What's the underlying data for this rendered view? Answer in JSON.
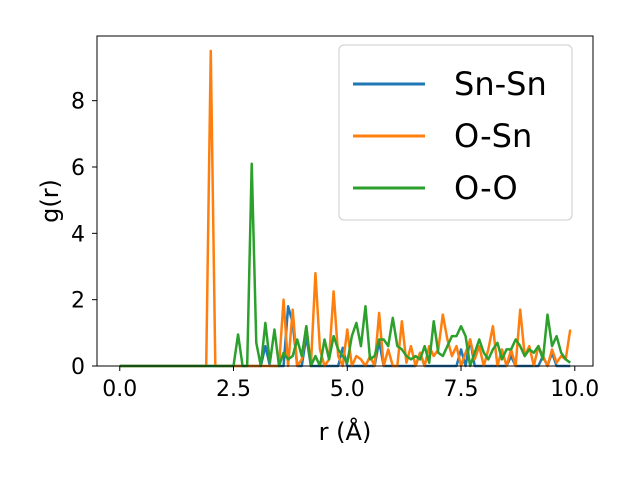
{
  "chart_data": {
    "type": "line",
    "title": "",
    "xlabel": "r (Å)",
    "ylabel": "g(r)",
    "xlim": [
      -0.5,
      10.4
    ],
    "ylim": [
      0,
      9.95
    ],
    "xticks": [
      0.0,
      2.5,
      5.0,
      7.5,
      10.0
    ],
    "xtick_labels": [
      "0.0",
      "2.5",
      "5.0",
      "7.5",
      "10.0"
    ],
    "yticks": [
      0,
      2,
      4,
      6,
      8
    ],
    "ytick_labels": [
      "0",
      "2",
      "4",
      "6",
      "8"
    ],
    "grid": false,
    "legend_position": "top-right",
    "series": [
      {
        "name": "Sn-Sn",
        "color": "#1f77b4",
        "points": [
          [
            0.0,
            0
          ],
          [
            2.9,
            0
          ],
          [
            3.0,
            0
          ],
          [
            3.1,
            0
          ],
          [
            3.2,
            0.6
          ],
          [
            3.3,
            0
          ],
          [
            3.5,
            0
          ],
          [
            3.6,
            0
          ],
          [
            3.7,
            1.8
          ],
          [
            3.8,
            1.3
          ],
          [
            3.9,
            0
          ],
          [
            4.0,
            0
          ],
          [
            4.1,
            0.9
          ],
          [
            4.2,
            0
          ],
          [
            4.5,
            0
          ],
          [
            4.8,
            0
          ],
          [
            4.9,
            0.55
          ],
          [
            5.0,
            0
          ],
          [
            5.6,
            0
          ],
          [
            5.7,
            0.75
          ],
          [
            5.8,
            0
          ],
          [
            6.5,
            0
          ],
          [
            6.6,
            0.4
          ],
          [
            6.7,
            0
          ],
          [
            7.4,
            0
          ],
          [
            7.5,
            0.5
          ],
          [
            7.6,
            0
          ],
          [
            7.7,
            0.8
          ],
          [
            7.8,
            0
          ],
          [
            8.5,
            0
          ],
          [
            8.6,
            0.3
          ],
          [
            8.7,
            0
          ],
          [
            9.2,
            0
          ],
          [
            9.3,
            0.3
          ],
          [
            9.4,
            0
          ],
          [
            9.5,
            0.4
          ],
          [
            9.6,
            0
          ],
          [
            9.9,
            0
          ]
        ]
      },
      {
        "name": "O-Sn",
        "color": "#ff7f0e",
        "points": [
          [
            0.0,
            0
          ],
          [
            1.9,
            0
          ],
          [
            2.0,
            9.5
          ],
          [
            2.1,
            0
          ],
          [
            3.5,
            0
          ],
          [
            3.6,
            2.0
          ],
          [
            3.7,
            0
          ],
          [
            3.8,
            1.7
          ],
          [
            3.9,
            0
          ],
          [
            4.0,
            0.2
          ],
          [
            4.1,
            1.2
          ],
          [
            4.2,
            0
          ],
          [
            4.3,
            2.8
          ],
          [
            4.4,
            0.5
          ],
          [
            4.5,
            0
          ],
          [
            4.6,
            0.2
          ],
          [
            4.7,
            2.25
          ],
          [
            4.8,
            0.3
          ],
          [
            4.9,
            0
          ],
          [
            5.0,
            1.1
          ],
          [
            5.1,
            0
          ],
          [
            5.2,
            0.3
          ],
          [
            5.3,
            0.2
          ],
          [
            5.4,
            0
          ],
          [
            5.5,
            0.3
          ],
          [
            5.6,
            0
          ],
          [
            5.7,
            1.6
          ],
          [
            5.8,
            0
          ],
          [
            5.9,
            0.5
          ],
          [
            6.0,
            0
          ],
          [
            6.1,
            0
          ],
          [
            6.2,
            1.35
          ],
          [
            6.3,
            0.1
          ],
          [
            6.4,
            0.6
          ],
          [
            6.5,
            0
          ],
          [
            6.6,
            0.4
          ],
          [
            6.7,
            0
          ],
          [
            6.8,
            0.6
          ],
          [
            6.9,
            0.3
          ],
          [
            7.0,
            0.5
          ],
          [
            7.1,
            1.55
          ],
          [
            7.2,
            0.8
          ],
          [
            7.3,
            0.3
          ],
          [
            7.4,
            0.6
          ],
          [
            7.5,
            0
          ],
          [
            7.6,
            0.4
          ],
          [
            7.7,
            0.8
          ],
          [
            7.8,
            0.2
          ],
          [
            7.9,
            0.6
          ],
          [
            8.0,
            0
          ],
          [
            8.1,
            0.5
          ],
          [
            8.2,
            1.2
          ],
          [
            8.3,
            0
          ],
          [
            8.4,
            0.5
          ],
          [
            8.5,
            0
          ],
          [
            8.6,
            0.5
          ],
          [
            8.7,
            0
          ],
          [
            8.8,
            1.7
          ],
          [
            8.9,
            0.3
          ],
          [
            9.0,
            0.6
          ],
          [
            9.1,
            0
          ],
          [
            9.2,
            0.6
          ],
          [
            9.3,
            0.3
          ],
          [
            9.4,
            0
          ],
          [
            9.5,
            0.5
          ],
          [
            9.6,
            0.1
          ],
          [
            9.7,
            0.3
          ],
          [
            9.8,
            0.2
          ],
          [
            9.9,
            1.1
          ]
        ]
      },
      {
        "name": "O-O",
        "color": "#2ca02c",
        "points": [
          [
            0.0,
            0
          ],
          [
            2.5,
            0
          ],
          [
            2.6,
            0.95
          ],
          [
            2.7,
            0
          ],
          [
            2.8,
            0
          ],
          [
            2.9,
            6.1
          ],
          [
            3.0,
            0.7
          ],
          [
            3.1,
            0
          ],
          [
            3.2,
            1.3
          ],
          [
            3.3,
            0.1
          ],
          [
            3.4,
            1.1
          ],
          [
            3.5,
            0
          ],
          [
            3.6,
            0.4
          ],
          [
            3.7,
            0.2
          ],
          [
            3.8,
            0.3
          ],
          [
            3.9,
            0.8
          ],
          [
            4.0,
            0.3
          ],
          [
            4.1,
            1.2
          ],
          [
            4.2,
            0
          ],
          [
            4.3,
            0.3
          ],
          [
            4.4,
            0
          ],
          [
            4.5,
            0.8
          ],
          [
            4.6,
            0.2
          ],
          [
            4.7,
            0.9
          ],
          [
            4.8,
            0.5
          ],
          [
            4.9,
            0.3
          ],
          [
            5.0,
            0.1
          ],
          [
            5.1,
            0.9
          ],
          [
            5.2,
            1.3
          ],
          [
            5.3,
            0.6
          ],
          [
            5.4,
            1.8
          ],
          [
            5.5,
            0.2
          ],
          [
            5.6,
            0.3
          ],
          [
            5.7,
            0.8
          ],
          [
            5.8,
            0.8
          ],
          [
            5.9,
            0.6
          ],
          [
            6.0,
            1.45
          ],
          [
            6.1,
            0.6
          ],
          [
            6.2,
            0.5
          ],
          [
            6.3,
            0.3
          ],
          [
            6.4,
            0.2
          ],
          [
            6.5,
            0.3
          ],
          [
            6.6,
            0.2
          ],
          [
            6.7,
            0.6
          ],
          [
            6.8,
            0.1
          ],
          [
            6.9,
            1.35
          ],
          [
            7.0,
            0.4
          ],
          [
            7.1,
            0.3
          ],
          [
            7.2,
            0.6
          ],
          [
            7.3,
            0.9
          ],
          [
            7.4,
            0.9
          ],
          [
            7.5,
            1.2
          ],
          [
            7.6,
            0.9
          ],
          [
            7.7,
            0
          ],
          [
            7.8,
            0.4
          ],
          [
            7.9,
            0.8
          ],
          [
            8.0,
            0.4
          ],
          [
            8.1,
            0.2
          ],
          [
            8.2,
            0.5
          ],
          [
            8.3,
            0.7
          ],
          [
            8.4,
            0.2
          ],
          [
            8.5,
            0.5
          ],
          [
            8.6,
            0.5
          ],
          [
            8.7,
            0.8
          ],
          [
            8.8,
            0.6
          ],
          [
            8.9,
            0.3
          ],
          [
            9.0,
            0.5
          ],
          [
            9.1,
            0.4
          ],
          [
            9.2,
            0.6
          ],
          [
            9.3,
            0.2
          ],
          [
            9.4,
            1.55
          ],
          [
            9.5,
            0.6
          ],
          [
            9.6,
            0.9
          ],
          [
            9.7,
            0.4
          ],
          [
            9.8,
            0.2
          ],
          [
            9.9,
            0.1
          ]
        ]
      }
    ]
  }
}
